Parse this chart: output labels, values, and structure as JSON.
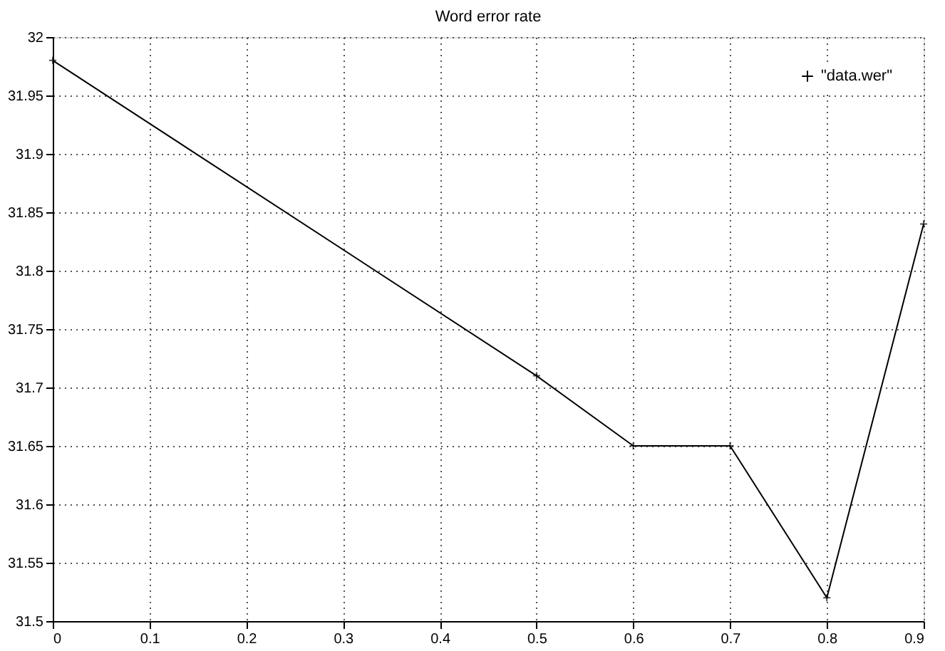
{
  "chart_data": {
    "type": "line",
    "title": "Word error rate",
    "x": [
      0,
      0.5,
      0.6,
      0.7,
      0.8,
      0.9
    ],
    "series": [
      {
        "name": "\"data.wer\"",
        "color": "#000000",
        "values": [
          31.98,
          31.71,
          31.65,
          31.65,
          31.52,
          31.84
        ]
      }
    ],
    "xlim": [
      0,
      0.9
    ],
    "xticks": [
      0,
      0.1,
      0.2,
      0.3,
      0.4,
      0.5,
      0.6,
      0.7,
      0.8,
      0.9
    ],
    "ylim": [
      31.5,
      32
    ],
    "yticks": [
      31.5,
      31.55,
      31.6,
      31.65,
      31.7,
      31.75,
      31.8,
      31.85,
      31.9,
      31.95,
      32
    ],
    "grid": true,
    "legend": "top right",
    "marker": "cross",
    "line_style": "solid"
  }
}
